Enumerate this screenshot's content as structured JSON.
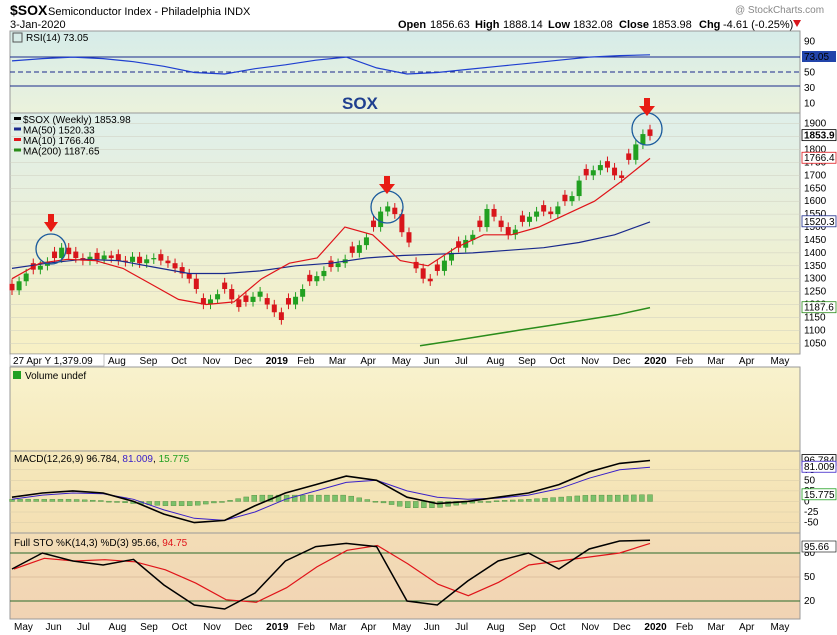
{
  "header": {
    "symbol": "$SOX",
    "name": "Semiconductor Index - Philadelphia  INDX",
    "date": "3-Jan-2020",
    "open_label": "Open",
    "open": "1856.63",
    "high_label": "High",
    "high": "1888.14",
    "low_label": "Low",
    "low": "1832.08",
    "close_label": "Close",
    "close": "1853.98",
    "chg_label": "Chg",
    "chg": "-4.61 (-0.25%)",
    "watermark": "@ StockCharts.com"
  },
  "colors": {
    "panel_bg_top": "#e6f2ee",
    "panel_bg_bottom": "#f5f0c8",
    "price_panel_bg": "#fbf6d6",
    "volume_bg": "#f8f1cc",
    "stoch_bg": "#f8e2c2",
    "up": "#21a021",
    "down": "#d8151b",
    "ma50": "#1a2a8c",
    "ma10": "#e0141a",
    "ma200": "#2a8c1a",
    "rsi": "#1f3fd0",
    "macd": "#000000",
    "signal": "#3a20c8"
  },
  "panels": {
    "rsi": {
      "label": "RSI(14) 73.05",
      "ticks": [
        "90",
        "70",
        "50",
        "30",
        "10"
      ],
      "current": "73.05"
    },
    "price": {
      "annotation": "SOX",
      "legend": [
        {
          "text": "$SOX (Weekly) 1853.98",
          "color": "#000000"
        },
        {
          "text": "MA(50) 1520.33",
          "color": "#1a2a8c"
        },
        {
          "text": "MA(10) 1766.40",
          "color": "#e0141a"
        },
        {
          "text": "MA(200) 1187.65",
          "color": "#2a8c1a"
        }
      ],
      "ticks": [
        "1900",
        "1850",
        "1800",
        "1750",
        "1700",
        "1650",
        "1600",
        "1550",
        "1500",
        "1450",
        "1400",
        "1350",
        "1300",
        "1250",
        "1200",
        "1150",
        "1100",
        "1050"
      ],
      "tags": [
        "1853.9",
        "1766.4",
        "1520.3",
        "1187.6"
      ],
      "date_tag": "27 Apr Y 1,379.09"
    },
    "volume": {
      "label": "Volume undef"
    },
    "macd": {
      "label_prefix": "MACD(12,26,9) ",
      "macd_val": "96.784",
      "signal_val": "81.009",
      "hist_val": "15.775",
      "ticks": [
        "75",
        "50",
        "25",
        "0",
        "-25",
        "-50"
      ],
      "tags": [
        "96.784",
        "81.009",
        "15.775"
      ]
    },
    "stoch": {
      "label_prefix": "Full STO %K(14,3) %D(3) ",
      "k_val": "95.66",
      "d_val": "94.75",
      "ticks": [
        "80",
        "50",
        "20"
      ],
      "tag": "95.66"
    }
  },
  "x_axis": {
    "months": [
      "Aug",
      "Sep",
      "Oct",
      "Nov",
      "Dec",
      "2019",
      "Feb",
      "Mar",
      "Apr",
      "May",
      "Jun",
      "Jul",
      "Aug",
      "Sep",
      "Oct",
      "Nov",
      "Dec",
      "2020",
      "Feb",
      "Mar",
      "Apr",
      "May"
    ],
    "bottom_months": [
      "May",
      "Jun",
      "Jul",
      "Aug",
      "Sep",
      "Oct",
      "Nov",
      "Dec",
      "2019",
      "Feb",
      "Mar",
      "Apr",
      "May",
      "Jun",
      "Jul",
      "Aug",
      "Sep",
      "Oct",
      "Nov",
      "Dec",
      "2020",
      "Feb",
      "Mar",
      "Apr",
      "May"
    ]
  },
  "chart_data": {
    "type": "line",
    "title": "$SOX Semiconductor Index - Philadelphia INDX",
    "series": [
      {
        "name": "$SOX (Weekly) 1853.98",
        "type": "candlestick",
        "values": [
          1255,
          1290,
          1320,
          1335,
          1350,
          1365,
          1380,
          1420,
          1395,
          1380,
          1370,
          1385,
          1375,
          1390,
          1380,
          1370,
          1365,
          1385,
          1360,
          1375,
          1380,
          1370,
          1360,
          1340,
          1320,
          1300,
          1260,
          1200,
          1220,
          1240,
          1260,
          1220,
          1190,
          1210,
          1230,
          1250,
          1200,
          1170,
          1140,
          1200,
          1230,
          1260,
          1290,
          1310,
          1330,
          1345,
          1360,
          1375,
          1400,
          1430,
          1460,
          1500,
          1560,
          1580,
          1550,
          1480,
          1440,
          1340,
          1300,
          1290,
          1330,
          1370,
          1400,
          1420,
          1450,
          1470,
          1500,
          1570,
          1540,
          1500,
          1470,
          1490,
          1520,
          1540,
          1560,
          1560,
          1550,
          1580,
          1600,
          1620,
          1680,
          1700,
          1720,
          1740,
          1730,
          1700,
          1690,
          1760,
          1820,
          1860,
          1853
        ]
      },
      {
        "name": "MA(10) 1766.40",
        "values": [
          1300,
          1360,
          1375,
          1370,
          1340,
          1280,
          1220,
          1200,
          1210,
          1300,
          1360,
          1380,
          1500,
          1470,
          1370,
          1350,
          1420,
          1470,
          1470,
          1500,
          1550,
          1600,
          1680,
          1766
        ]
      },
      {
        "name": "MA(50) 1520.33",
        "values": [
          1340,
          1360,
          1375,
          1370,
          1345,
          1320,
          1320,
          1330,
          1350,
          1360,
          1380,
          1390,
          1395,
          1400,
          1410,
          1420,
          1440,
          1470,
          1520
        ]
      },
      {
        "name": "MA(200) 1187.65",
        "values": [
          1040,
          1060,
          1080,
          1100,
          1120,
          1140,
          1160,
          1188
        ]
      },
      {
        "name": "RSI(14) 73.05",
        "values": [
          65,
          68,
          70,
          68,
          64,
          58,
          50,
          48,
          55,
          60,
          66,
          70,
          56,
          48,
          50,
          54,
          58,
          62,
          66,
          70,
          72,
          73
        ]
      },
      {
        "name": "MACD(12,26,9) 96.784",
        "values": [
          10,
          20,
          25,
          20,
          0,
          -30,
          -50,
          -45,
          -10,
          20,
          40,
          60,
          50,
          10,
          -5,
          0,
          10,
          20,
          40,
          70,
          90,
          97
        ]
      },
      {
        "name": "81.009",
        "values": [
          5,
          15,
          20,
          18,
          5,
          -20,
          -40,
          -45,
          -25,
          5,
          25,
          45,
          50,
          25,
          10,
          5,
          8,
          15,
          30,
          55,
          75,
          81
        ]
      },
      {
        "name": "Full STO %K(14,3) %D(3) 95.66",
        "values": [
          60,
          80,
          70,
          65,
          72,
          40,
          15,
          10,
          30,
          70,
          88,
          92,
          88,
          20,
          15,
          45,
          70,
          80,
          60,
          85,
          95,
          96
        ]
      }
    ],
    "ylim": [
      1020,
      1930
    ],
    "legend": "top-left"
  }
}
